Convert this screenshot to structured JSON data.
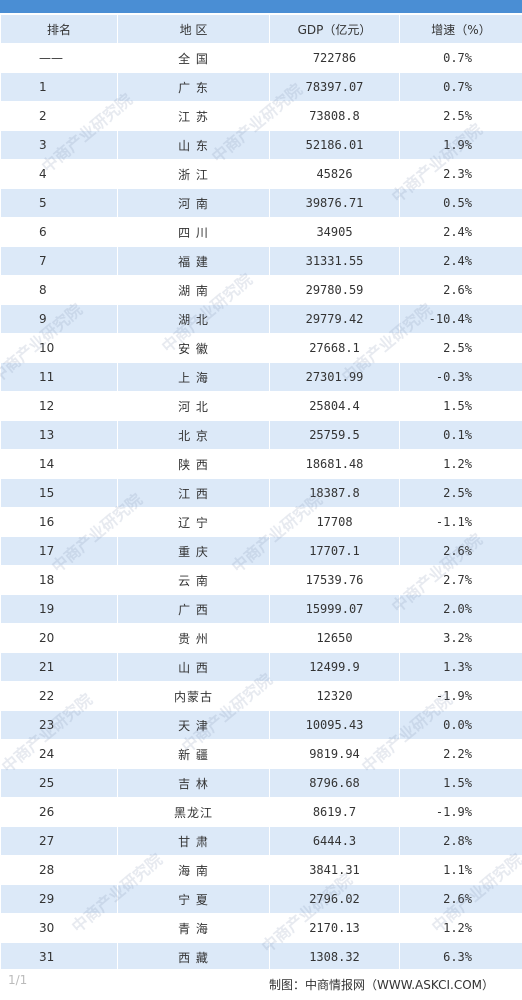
{
  "table": {
    "headers": [
      "排名",
      "地 区",
      "GDP（亿元）",
      "增速（%）"
    ],
    "rows": [
      {
        "rank": "——",
        "region": "全  国",
        "gdp": "722786",
        "growth": "0.7%"
      },
      {
        "rank": "1",
        "region": "广  东",
        "gdp": "78397.07",
        "growth": "0.7%"
      },
      {
        "rank": "2",
        "region": "江  苏",
        "gdp": "73808.8",
        "growth": "2.5%"
      },
      {
        "rank": "3",
        "region": "山  东",
        "gdp": "52186.01",
        "growth": "1.9%"
      },
      {
        "rank": "4",
        "region": "浙  江",
        "gdp": "45826",
        "growth": "2.3%"
      },
      {
        "rank": "5",
        "region": "河  南",
        "gdp": "39876.71",
        "growth": "0.5%"
      },
      {
        "rank": "6",
        "region": "四  川",
        "gdp": "34905",
        "growth": "2.4%"
      },
      {
        "rank": "7",
        "region": "福  建",
        "gdp": "31331.55",
        "growth": "2.4%"
      },
      {
        "rank": "8",
        "region": "湖  南",
        "gdp": "29780.59",
        "growth": "2.6%"
      },
      {
        "rank": "9",
        "region": "湖  北",
        "gdp": "29779.42",
        "growth": "-10.4%"
      },
      {
        "rank": "10",
        "region": "安  徽",
        "gdp": "27668.1",
        "growth": "2.5%"
      },
      {
        "rank": "11",
        "region": "上  海",
        "gdp": "27301.99",
        "growth": "-0.3%"
      },
      {
        "rank": "12",
        "region": "河  北",
        "gdp": "25804.4",
        "growth": "1.5%"
      },
      {
        "rank": "13",
        "region": "北  京",
        "gdp": "25759.5",
        "growth": "0.1%"
      },
      {
        "rank": "14",
        "region": "陕  西",
        "gdp": "18681.48",
        "growth": "1.2%"
      },
      {
        "rank": "15",
        "region": "江  西",
        "gdp": "18387.8",
        "growth": "2.5%"
      },
      {
        "rank": "16",
        "region": "辽  宁",
        "gdp": "17708",
        "growth": "-1.1%"
      },
      {
        "rank": "17",
        "region": "重  庆",
        "gdp": "17707.1",
        "growth": "2.6%"
      },
      {
        "rank": "18",
        "region": "云  南",
        "gdp": "17539.76",
        "growth": "2.7%"
      },
      {
        "rank": "19",
        "region": "广  西",
        "gdp": "15999.07",
        "growth": "2.0%"
      },
      {
        "rank": "20",
        "region": "贵  州",
        "gdp": "12650",
        "growth": "3.2%"
      },
      {
        "rank": "21",
        "region": "山  西",
        "gdp": "12499.9",
        "growth": "1.3%"
      },
      {
        "rank": "22",
        "region": "内蒙古",
        "gdp": "12320",
        "growth": "-1.9%"
      },
      {
        "rank": "23",
        "region": "天  津",
        "gdp": "10095.43",
        "growth": "0.0%"
      },
      {
        "rank": "24",
        "region": "新  疆",
        "gdp": "9819.94",
        "growth": "2.2%"
      },
      {
        "rank": "25",
        "region": "吉  林",
        "gdp": "8796.68",
        "growth": "1.5%"
      },
      {
        "rank": "26",
        "region": "黑龙江",
        "gdp": "8619.7",
        "growth": "-1.9%"
      },
      {
        "rank": "27",
        "region": "甘  肃",
        "gdp": "6444.3",
        "growth": "2.8%"
      },
      {
        "rank": "28",
        "region": "海  南",
        "gdp": "3841.31",
        "growth": "1.1%"
      },
      {
        "rank": "29",
        "region": "宁  夏",
        "gdp": "2796.02",
        "growth": "2.6%"
      },
      {
        "rank": "30",
        "region": "青  海",
        "gdp": "2170.13",
        "growth": "1.2%"
      },
      {
        "rank": "31",
        "region": "西  藏",
        "gdp": "1308.32",
        "growth": "6.3%"
      }
    ]
  },
  "footer": {
    "credit": "制图：中商情报网（WWW.ASKCI.COM）",
    "page": "1/1"
  },
  "watermark": {
    "text": "中商产业研究院"
  },
  "colors": {
    "header_bar": "#4a8ed4",
    "stripe": "#dce9f8"
  }
}
